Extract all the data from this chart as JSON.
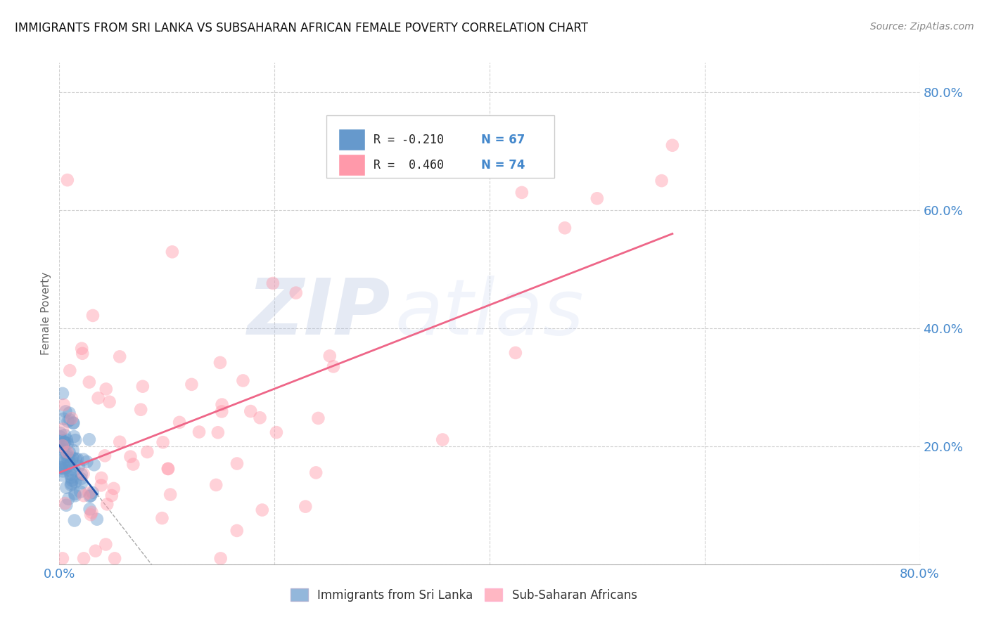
{
  "title": "IMMIGRANTS FROM SRI LANKA VS SUBSAHARAN AFRICAN FEMALE POVERTY CORRELATION CHART",
  "source": "Source: ZipAtlas.com",
  "ylabel": "Female Poverty",
  "xlim": [
    0,
    0.8
  ],
  "ylim": [
    0,
    0.85
  ],
  "xtick_vals": [
    0.0,
    0.2,
    0.4,
    0.6,
    0.8
  ],
  "xtick_labels": [
    "0.0%",
    "",
    "",
    "",
    "80.0%"
  ],
  "ytick_vals": [
    0.0,
    0.2,
    0.4,
    0.6,
    0.8
  ],
  "ytick_labels": [
    "",
    "20.0%",
    "40.0%",
    "60.0%",
    "80.0%"
  ],
  "legend1_label": "Immigrants from Sri Lanka",
  "legend2_label": "Sub-Saharan Africans",
  "R1": "-0.210",
  "N1": "67",
  "R2": "0.460",
  "N2": "74",
  "color_blue": "#6699CC",
  "color_pink": "#FF99AA",
  "line_blue": "#2255AA",
  "line_pink": "#EE6688",
  "watermark_zip": "ZIP",
  "watermark_atlas": "atlas",
  "background_color": "#FFFFFF"
}
